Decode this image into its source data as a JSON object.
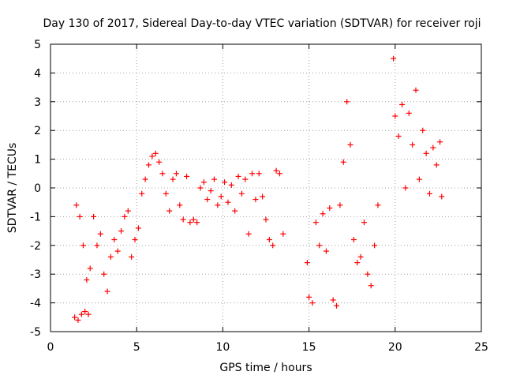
{
  "chart_data": {
    "type": "scatter",
    "title": "Day 130 of 2017, Sidereal Day-to-day VTEC variation (SDTVAR) for receiver roji",
    "xlabel": "GPS time / hours",
    "ylabel": "SDTVAR / TECUs",
    "xlim": [
      0,
      25
    ],
    "ylim": [
      -5,
      5
    ],
    "xticks": [
      0,
      5,
      10,
      15,
      20,
      25
    ],
    "yticks": [
      -5,
      -4,
      -3,
      -2,
      -1,
      0,
      1,
      2,
      3,
      4,
      5
    ],
    "grid": true,
    "legend": "none",
    "marker": "+",
    "color": "#ff0000",
    "series": [
      {
        "x": [
          1.4,
          1.6,
          1.8,
          2.0,
          2.2,
          1.5,
          1.7,
          1.9,
          2.1,
          2.3,
          2.5,
          2.7,
          2.9,
          3.1,
          3.3,
          3.5,
          3.7,
          3.9,
          4.1,
          4.3,
          4.5,
          4.7,
          4.9,
          5.1,
          5.3,
          5.5,
          5.7,
          5.9,
          6.1,
          6.3,
          6.5,
          6.7,
          6.9,
          7.1,
          7.3,
          7.5,
          7.7,
          7.9,
          8.1,
          8.3,
          8.5,
          8.7,
          8.9,
          9.1,
          9.3,
          9.5,
          9.7,
          9.9,
          10.1,
          10.3,
          10.5,
          10.7,
          10.9,
          11.1,
          11.3,
          11.5,
          11.7,
          11.9,
          12.1,
          12.3,
          12.5,
          12.7,
          12.9,
          13.1,
          13.3,
          13.5,
          14.9,
          15.0,
          15.2,
          15.4,
          15.6,
          15.8,
          16.0,
          16.2,
          16.4,
          16.6,
          16.8,
          17.0,
          17.2,
          17.4,
          17.6,
          17.8,
          18.0,
          18.2,
          18.4,
          18.6,
          18.8,
          19.0,
          19.9,
          20.0,
          20.2,
          20.4,
          20.6,
          20.8,
          21.0,
          21.2,
          21.4,
          21.6,
          21.8,
          22.0,
          22.2,
          22.4,
          22.6,
          22.7
        ],
        "y": [
          -4.5,
          -4.6,
          -4.4,
          -4.3,
          -4.4,
          -0.6,
          -1.0,
          -2.0,
          -3.2,
          -2.8,
          -1.0,
          -2.0,
          -1.6,
          -3.0,
          -3.6,
          -2.4,
          -1.8,
          -2.2,
          -1.5,
          -1.0,
          -0.8,
          -2.4,
          -1.8,
          -1.4,
          -0.2,
          0.3,
          0.8,
          1.1,
          1.2,
          0.9,
          0.5,
          -0.2,
          -0.8,
          0.3,
          0.5,
          -0.6,
          -1.1,
          0.4,
          -1.2,
          -1.1,
          -1.2,
          0.0,
          0.2,
          -0.4,
          -0.1,
          0.3,
          -0.6,
          -0.3,
          0.2,
          -0.5,
          0.1,
          -0.8,
          0.4,
          -0.2,
          0.3,
          -1.6,
          0.5,
          -0.4,
          0.5,
          -0.3,
          -1.1,
          -1.8,
          -2.0,
          0.6,
          0.5,
          -1.6,
          -2.6,
          -3.8,
          -4.0,
          -1.2,
          -2.0,
          -0.9,
          -2.2,
          -0.7,
          -3.9,
          -4.1,
          -0.6,
          0.9,
          3.0,
          1.5,
          -1.8,
          -2.6,
          -2.4,
          -1.2,
          -3.0,
          -3.4,
          -2.0,
          -0.6,
          4.5,
          2.5,
          1.8,
          2.9,
          0.0,
          2.6,
          1.5,
          3.4,
          0.3,
          2.0,
          1.2,
          -0.2,
          1.4,
          0.8,
          1.6,
          -0.3
        ]
      }
    ]
  }
}
